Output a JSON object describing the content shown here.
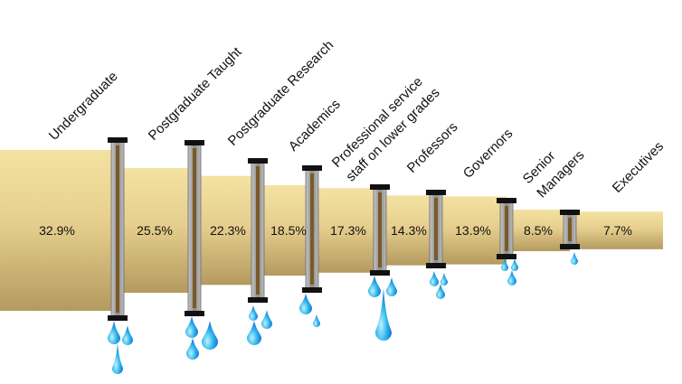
{
  "chart_data": {
    "type": "bar",
    "title": "",
    "xlabel": "",
    "ylabel": "",
    "categories": [
      "Undergraduate",
      "Postgraduate Taught",
      "Postgraduate Research",
      "Academics",
      "Professional service staff on lower grades",
      "Professors",
      "Governors",
      "Senior Managers",
      "Executives"
    ],
    "category_lines": [
      [
        "Undergraduate"
      ],
      [
        "Postgraduate Taught"
      ],
      [
        "Postgraduate Research"
      ],
      [
        "Academics"
      ],
      [
        "Professional service",
        "staff on lower grades"
      ],
      [
        "Professors"
      ],
      [
        "Governors"
      ],
      [
        "Senior",
        "Managers"
      ],
      [
        "Executives"
      ]
    ],
    "values": [
      32.9,
      25.5,
      22.3,
      18.5,
      17.3,
      14.3,
      13.9,
      8.5,
      7.7
    ],
    "value_labels": [
      "32.9%",
      "25.5%",
      "22.3%",
      "18.5%",
      "17.3%",
      "14.3%",
      "13.9%",
      "8.5%",
      "7.7%"
    ],
    "unit": "%",
    "ylim": [
      0,
      32.9
    ],
    "grid": false,
    "legend": "none",
    "style": "leaking pipeline with shrinking pipe segments and water drops at each joint"
  },
  "colors": {
    "pipe_light": "#f4e2a2",
    "pipe_mid": "#e6cf8e",
    "pipe_dark": "#b49a5f",
    "joint_metal": "#8a8a8a",
    "joint_core": "#7a5a28",
    "joint_cap": "#111111",
    "drop_light": "#bdf2ff",
    "drop_mid": "#2fb6ea",
    "drop_dark": "#0a4fd6"
  }
}
